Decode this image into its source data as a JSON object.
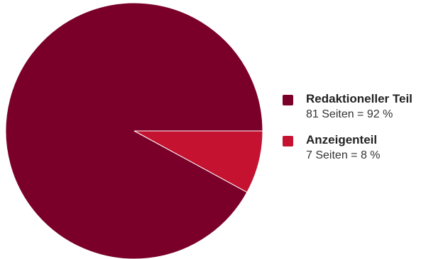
{
  "chart_data": {
    "type": "pie",
    "title": "",
    "slices": [
      {
        "label": "Redaktioneller Teil",
        "detail": "81 Seiten = 92 %",
        "value": 81,
        "percent": 92,
        "color": "#7a0029"
      },
      {
        "label": "Anzeigenteil",
        "detail": "7 Seiten = 8 %",
        "value": 7,
        "percent": 8,
        "color": "#c41230"
      }
    ],
    "legend_position": "right"
  }
}
